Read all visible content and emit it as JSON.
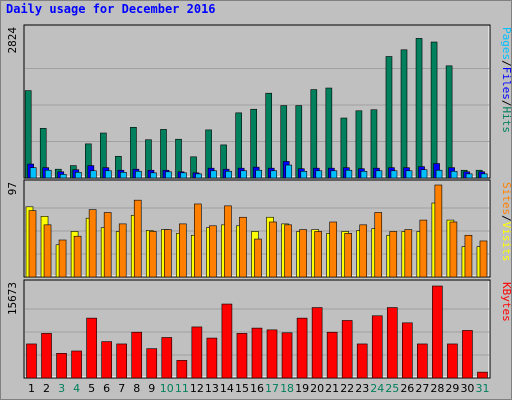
{
  "title": "Daily usage for December 2016",
  "colors": {
    "hits": "#00805c",
    "files": "#0000ff",
    "pages": "#00c0ff",
    "visits": "#ffff00",
    "sites": "#ff8000",
    "kbytes": "#ff0000",
    "weekend_label": "#00805c",
    "weekday_label": "#000000",
    "panel_bg": "#c0c0c0"
  },
  "chart_data": [
    {
      "type": "bar",
      "categories": [
        "1",
        "2",
        "3",
        "4",
        "5",
        "6",
        "7",
        "8",
        "9",
        "10",
        "11",
        "12",
        "13",
        "14",
        "15",
        "16",
        "17",
        "18",
        "19",
        "20",
        "21",
        "22",
        "23",
        "24",
        "25",
        "26",
        "27",
        "28",
        "29",
        "30",
        "31"
      ],
      "weekend_days": [
        "3",
        "4",
        "10",
        "11",
        "17",
        "18",
        "24",
        "25",
        "31"
      ],
      "ymax_label": "2824",
      "ylim": [
        0,
        2824
      ],
      "legend": [
        {
          "label": "Pages",
          "color": "#00c0ff"
        },
        {
          "label": "/",
          "color": "#000000"
        },
        {
          "label": "Files",
          "color": "#0000ff"
        },
        {
          "label": "/",
          "color": "#000000"
        },
        {
          "label": "Hits",
          "color": "#00805c"
        }
      ],
      "series": [
        {
          "name": "Hits",
          "values": [
            1690,
            960,
            170,
            240,
            660,
            870,
            420,
            980,
            740,
            940,
            750,
            410,
            930,
            640,
            1260,
            1330,
            1640,
            1400,
            1400,
            1710,
            1740,
            1160,
            1300,
            1320,
            2350,
            2480,
            2700,
            2630,
            2170,
            150,
            150
          ]
        },
        {
          "name": "Files",
          "values": [
            270,
            200,
            120,
            160,
            240,
            200,
            150,
            170,
            150,
            150,
            120,
            100,
            190,
            170,
            190,
            210,
            190,
            320,
            180,
            190,
            190,
            200,
            180,
            190,
            200,
            200,
            220,
            280,
            200,
            120,
            120
          ]
        },
        {
          "name": "Pages",
          "values": [
            200,
            150,
            70,
            110,
            140,
            140,
            110,
            130,
            100,
            120,
            100,
            80,
            140,
            130,
            140,
            150,
            140,
            250,
            130,
            140,
            140,
            150,
            130,
            140,
            140,
            140,
            160,
            150,
            130,
            80,
            80
          ]
        }
      ]
    },
    {
      "type": "bar",
      "categories": [
        "1",
        "2",
        "3",
        "4",
        "5",
        "6",
        "7",
        "8",
        "9",
        "10",
        "11",
        "12",
        "13",
        "14",
        "15",
        "16",
        "17",
        "18",
        "19",
        "20",
        "21",
        "22",
        "23",
        "24",
        "25",
        "26",
        "27",
        "28",
        "29",
        "30",
        "31"
      ],
      "ymax_label": "97",
      "ylim": [
        0,
        97
      ],
      "legend": [
        {
          "label": "Sites",
          "color": "#ff8000"
        },
        {
          "label": "/",
          "color": "#000000"
        },
        {
          "label": "Visits",
          "color": "#ffff00"
        }
      ],
      "series": [
        {
          "name": "Visits",
          "values": [
            74,
            64,
            34,
            48,
            62,
            52,
            48,
            65,
            49,
            50,
            46,
            44,
            52,
            55,
            54,
            48,
            63,
            56,
            48,
            50,
            46,
            48,
            49,
            51,
            44,
            48,
            48,
            78,
            60,
            32,
            32
          ]
        },
        {
          "name": "Sites",
          "values": [
            70,
            55,
            39,
            43,
            71,
            68,
            56,
            81,
            48,
            50,
            56,
            77,
            54,
            75,
            63,
            40,
            58,
            55,
            50,
            48,
            58,
            46,
            55,
            68,
            48,
            50,
            60,
            97,
            58,
            44,
            38
          ]
        }
      ]
    },
    {
      "type": "bar",
      "categories": [
        "1",
        "2",
        "3",
        "4",
        "5",
        "6",
        "7",
        "8",
        "9",
        "10",
        "11",
        "12",
        "13",
        "14",
        "15",
        "16",
        "17",
        "18",
        "19",
        "20",
        "21",
        "22",
        "23",
        "24",
        "25",
        "26",
        "27",
        "28",
        "29",
        "30",
        "31"
      ],
      "ymax_label": "15673",
      "ylim": [
        0,
        15673
      ],
      "legend": [
        {
          "label": "KBytes",
          "color": "#ff0000"
        }
      ],
      "series": [
        {
          "name": "KBytes",
          "values": [
            5800,
            7600,
            4200,
            4600,
            10200,
            6200,
            5800,
            7800,
            5000,
            6900,
            3000,
            8700,
            6800,
            12600,
            7600,
            8500,
            8200,
            7700,
            10200,
            12000,
            7800,
            9800,
            5800,
            10600,
            12000,
            9400,
            5800,
            15673,
            5800,
            8100,
            1000
          ]
        }
      ]
    }
  ]
}
